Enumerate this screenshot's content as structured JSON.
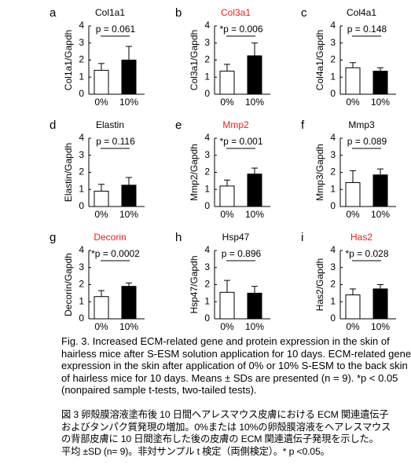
{
  "chart_data": [
    {
      "type": "bar",
      "panel": "a",
      "title": "Col1a1",
      "title_color": "#000000",
      "ylabel": "Col1a1/Gapdh",
      "categories": [
        "0%",
        "10%"
      ],
      "values": [
        1.4,
        2.0
      ],
      "errors": [
        0.4,
        0.8
      ],
      "colors": [
        "#ffffff",
        "#000000"
      ],
      "annotation": "p = 0.061",
      "ylim": [
        0,
        4
      ],
      "yticks": [
        0,
        1,
        2,
        3,
        4
      ]
    },
    {
      "type": "bar",
      "panel": "b",
      "title": "Col3a1",
      "title_color": "#e8201c",
      "ylabel": "Col3a1/Gapdh",
      "categories": [
        "0%",
        "10%"
      ],
      "values": [
        1.35,
        2.25
      ],
      "errors": [
        0.4,
        0.75
      ],
      "colors": [
        "#ffffff",
        "#000000"
      ],
      "annotation": "*p = 0.006",
      "ylim": [
        0,
        4
      ],
      "yticks": [
        0,
        1,
        2,
        3,
        4
      ]
    },
    {
      "type": "bar",
      "panel": "c",
      "title": "Col4a1",
      "title_color": "#000000",
      "ylabel": "Col4a1/Gapdh",
      "categories": [
        "0%",
        "10%"
      ],
      "values": [
        1.55,
        1.35
      ],
      "errors": [
        0.3,
        0.2
      ],
      "colors": [
        "#ffffff",
        "#000000"
      ],
      "annotation": "p = 0.148",
      "ylim": [
        0,
        4
      ],
      "yticks": [
        0,
        1,
        2,
        3,
        4
      ]
    },
    {
      "type": "bar",
      "panel": "d",
      "title": "Elastin",
      "title_color": "#000000",
      "ylabel": "Elastin/Gapdh",
      "categories": [
        "0%",
        "10%"
      ],
      "values": [
        0.9,
        1.25
      ],
      "errors": [
        0.4,
        0.45
      ],
      "colors": [
        "#ffffff",
        "#000000"
      ],
      "annotation": "p = 0.116",
      "ylim": [
        0,
        4
      ],
      "yticks": [
        0,
        1,
        2,
        3,
        4
      ]
    },
    {
      "type": "bar",
      "panel": "e",
      "title": "Mmp2",
      "title_color": "#e8201c",
      "ylabel": "Mmp2/Gapdh",
      "categories": [
        "0%",
        "10%"
      ],
      "values": [
        1.2,
        1.9
      ],
      "errors": [
        0.35,
        0.35
      ],
      "colors": [
        "#ffffff",
        "#000000"
      ],
      "annotation": "*p = 0.001",
      "ylim": [
        0,
        4
      ],
      "yticks": [
        0,
        1,
        2,
        3,
        4
      ]
    },
    {
      "type": "bar",
      "panel": "f",
      "title": "Mmp3",
      "title_color": "#000000",
      "ylabel": "Mmp3/Gapdh",
      "categories": [
        "0%",
        "10%"
      ],
      "values": [
        1.4,
        1.85
      ],
      "errors": [
        0.7,
        0.35
      ],
      "colors": [
        "#ffffff",
        "#000000"
      ],
      "annotation": "p = 0.089",
      "ylim": [
        0,
        4
      ],
      "yticks": [
        0,
        1,
        2,
        3,
        4
      ]
    },
    {
      "type": "bar",
      "panel": "g",
      "title": "Decorin",
      "title_color": "#e8201c",
      "ylabel": "Decorin/Gapdh",
      "categories": [
        "0%",
        "10%"
      ],
      "values": [
        1.3,
        1.9
      ],
      "errors": [
        0.35,
        0.2
      ],
      "colors": [
        "#ffffff",
        "#000000"
      ],
      "annotation": "*p = 0.0002",
      "ylim": [
        0,
        4
      ],
      "yticks": [
        0,
        1,
        2,
        3,
        4
      ]
    },
    {
      "type": "bar",
      "panel": "h",
      "title": "Hsp47",
      "title_color": "#000000",
      "ylabel": "Hsp47/Gapdh",
      "categories": [
        "0%",
        "10%"
      ],
      "values": [
        1.55,
        1.5
      ],
      "errors": [
        0.7,
        0.4
      ],
      "colors": [
        "#ffffff",
        "#000000"
      ],
      "annotation": "p = 0.896",
      "ylim": [
        0,
        4
      ],
      "yticks": [
        0,
        1,
        2,
        3,
        4
      ]
    },
    {
      "type": "bar",
      "panel": "i",
      "title": "Has2",
      "title_color": "#e8201c",
      "ylabel": "Has2/Gapdh",
      "categories": [
        "0%",
        "10%"
      ],
      "values": [
        1.4,
        1.75
      ],
      "errors": [
        0.35,
        0.25
      ],
      "colors": [
        "#ffffff",
        "#000000"
      ],
      "annotation": "*p = 0.028",
      "ylim": [
        0,
        4
      ],
      "yticks": [
        0,
        1,
        2,
        3,
        4
      ]
    }
  ],
  "caption_en": [
    "Fig. 3. Increased ECM-related gene and protein expression in the skin of",
    "hairless mice after S-ESM solution application for 10 days. ECM-related gene",
    "expression in the skin after application of 0% or 10% S-ESM to the back skin",
    "of hairless mice for 10 days. Means ± SDs are presented (n = 9). *p < 0.05",
    "(nonpaired sample t-tests, two-tailed tests)."
  ],
  "caption_ja": [
    "図 3 卵殻膜溶液塗布後 10 日間ヘアレスマウス皮膚における ECM 関連遺伝子",
    "およびタンパク質発現の増加。0%または 10%の卵殻膜溶液をヘアレスマウス",
    "の背部皮膚に 10 日間塗布した後の皮膚の ECM 関連遺伝子発現を示した。",
    "平均 ±SD (n= 9)。非対サンプル t 検定（両側検定）。* p <0.05。"
  ]
}
